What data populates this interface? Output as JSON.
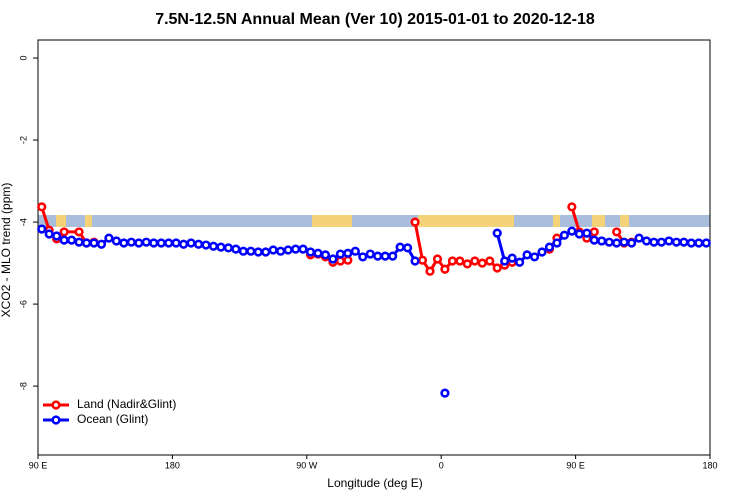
{
  "chart_data": {
    "type": "line",
    "title": "7.5N-12.5N Annual Mean (Ver 10)   2015-01-01 to 2020-12-18",
    "x_label": "Longitude (deg E)",
    "y_label": "XCO2 - MLO trend (ppm)",
    "xlim": [
      90,
      540
    ],
    "xticks": [
      {
        "value": 90,
        "label": "90 E"
      },
      {
        "value": 180,
        "label": "180"
      },
      {
        "value": 270,
        "label": "90 W"
      },
      {
        "value": 360,
        "label": "0"
      },
      {
        "value": 450,
        "label": "90 E"
      },
      {
        "value": 540,
        "label": "180"
      }
    ],
    "ylim": [
      -9.68,
      0.44
    ],
    "yticks": [
      0,
      -2,
      -4,
      -6,
      -8
    ],
    "legend": "bottomleft",
    "series": [
      {
        "name": "Land (Nadir&Glint)",
        "color": "#ff0000",
        "x": [
          92.5,
          97.5,
          102.5,
          107.5,
          117.5,
          122.5,
          127.5,
          200,
          272.5,
          277.5,
          282.5,
          287.5,
          292.5,
          297.5,
          320,
          342.5,
          347.5,
          352.5,
          357.5,
          362.5,
          367.5,
          372.5,
          377.5,
          382.5,
          387.5,
          392.5,
          397.5,
          402.5,
          407.5,
          420,
          432.5,
          437.5,
          440,
          447.5,
          452.5,
          457.5,
          462.5,
          470,
          477.5,
          482.5,
          487.5
        ],
        "values": [
          -3.63,
          -4.2,
          -4.41,
          -4.24,
          -4.24,
          -4.51,
          -4.49,
          null,
          -4.8,
          -4.78,
          -4.85,
          -4.98,
          -4.95,
          -4.93,
          null,
          -4.0,
          -4.93,
          -5.2,
          -4.9,
          -5.15,
          -4.95,
          -4.95,
          -5.02,
          -4.95,
          -5.0,
          -4.95,
          -5.12,
          -5.05,
          -4.98,
          null,
          -4.66,
          -4.39,
          null,
          -3.63,
          -4.24,
          -4.39,
          -4.24,
          null,
          -4.24,
          -4.51,
          -4.49
        ]
      },
      {
        "name": "Ocean (Glint)",
        "color": "#0000ff",
        "x": [
          92.5,
          97.5,
          102.5,
          107.5,
          112.5,
          117.5,
          122.5,
          127.5,
          132.5,
          137.5,
          142.5,
          147.5,
          152.5,
          157.5,
          162.5,
          167.5,
          172.5,
          177.5,
          182.5,
          187.5,
          192.5,
          197.5,
          202.5,
          207.5,
          212.5,
          217.5,
          222.5,
          227.5,
          232.5,
          237.5,
          242.5,
          247.5,
          252.5,
          257.5,
          262.5,
          267.5,
          272.5,
          277.5,
          282.5,
          287.5,
          292.5,
          297.5,
          302.5,
          307.5,
          312.5,
          317.5,
          322.5,
          327.5,
          332.5,
          337.5,
          342.5,
          347.5,
          352.5,
          357.5,
          362.5,
          367.5,
          372.5,
          377.5,
          382.5,
          387.5,
          392.5,
          397.5,
          402.5,
          407.5,
          412.5,
          417.5,
          422.5,
          427.5,
          432.5,
          437.5,
          442.5,
          447.5,
          452.5,
          457.5,
          462.5,
          467.5,
          472.5,
          477.5,
          482.5,
          487.5,
          492.5,
          497.5,
          502.5,
          507.5,
          512.5,
          517.5,
          522.5,
          527.5,
          532.5,
          537.5
        ],
        "values": [
          -4.17,
          -4.29,
          -4.34,
          -4.44,
          -4.44,
          -4.49,
          -4.51,
          -4.51,
          -4.54,
          -4.39,
          -4.46,
          -4.51,
          -4.49,
          -4.51,
          -4.49,
          -4.51,
          -4.51,
          -4.51,
          -4.51,
          -4.54,
          -4.51,
          -4.54,
          -4.56,
          -4.59,
          -4.61,
          -4.63,
          -4.66,
          -4.71,
          -4.71,
          -4.73,
          -4.73,
          -4.68,
          -4.71,
          -4.68,
          -4.66,
          -4.66,
          -4.73,
          -4.76,
          -4.8,
          -4.9,
          -4.78,
          -4.76,
          -4.71,
          -4.85,
          -4.78,
          -4.83,
          -4.83,
          -4.83,
          -4.61,
          -4.63,
          -4.95,
          null,
          null,
          null,
          -8.17,
          null,
          null,
          null,
          null,
          null,
          null,
          -4.27,
          -4.95,
          -4.88,
          -4.98,
          -4.8,
          -4.85,
          -4.73,
          -4.61,
          -4.51,
          -4.32,
          -4.22,
          -4.29,
          -4.27,
          -4.44,
          -4.46,
          -4.49,
          -4.51,
          -4.49,
          -4.51,
          -4.39,
          -4.46,
          -4.49,
          -4.49,
          -4.46,
          -4.49,
          -4.49,
          -4.51,
          -4.51,
          -4.51
        ]
      }
    ]
  }
}
